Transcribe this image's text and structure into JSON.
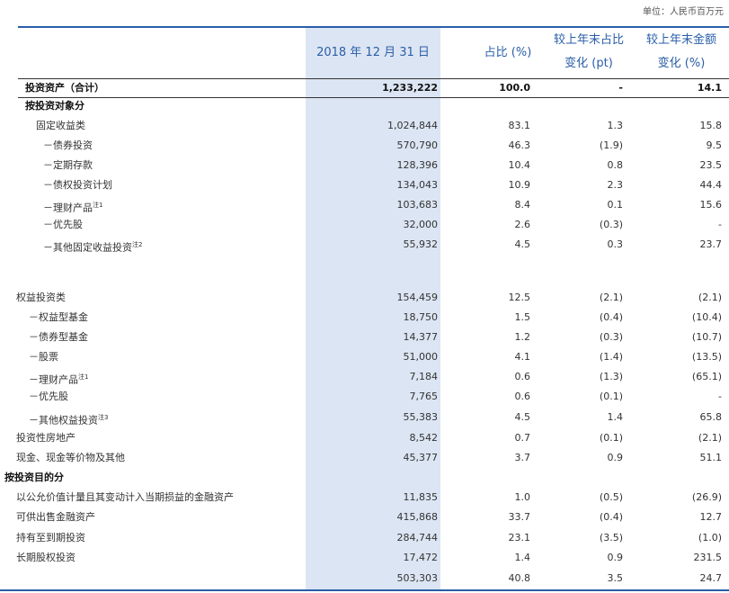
{
  "unit": "单位：人民币百万元",
  "table": {
    "header": [
      [
        "2018 年 12 月 31 日"
      ],
      [
        "占比 (%)"
      ],
      [
        "较上年末占比",
        "变化 (pt)"
      ],
      [
        "较上年末金额",
        "变化 (%)"
      ]
    ],
    "rows": [
      {
        "label": "投资资产（合计）",
        "cells": [
          "1,233,222",
          "100.0",
          "-",
          "14.1"
        ]
      },
      {
        "label": "按投资对象分"
      },
      {
        "label": "固定收益类",
        "cells": [
          "1,024,844",
          "83.1",
          "1.3",
          "15.8"
        ]
      },
      {
        "label": "－债券投资",
        "cells": [
          "570,790",
          "46.3",
          "(1.9)",
          "9.5"
        ]
      },
      {
        "label": "－定期存款",
        "cells": [
          "128,396",
          "10.4",
          "0.8",
          "23.5"
        ]
      },
      {
        "label": "－债权投资计划",
        "cells": [
          "134,043",
          "10.9",
          "2.3",
          "44.4"
        ]
      },
      {
        "label": "－理财产品",
        "note": "注1",
        "cells": [
          "103,683",
          "8.4",
          "0.1",
          "15.6"
        ]
      },
      {
        "label": "－优先股",
        "cells": [
          "32,000",
          "2.6",
          "(0.3)",
          "-"
        ]
      },
      {
        "label": "－其他固定收益投资",
        "note": "注2",
        "cells": [
          "55,932",
          "4.5",
          "0.3",
          "23.7"
        ]
      },
      {
        "label": "权益投资类",
        "cells": [
          "154,459",
          "12.5",
          "(2.1)",
          "(2.1)"
        ]
      },
      {
        "label": "－权益型基金",
        "cells": [
          "18,750",
          "1.5",
          "(0.4)",
          "(10.4)"
        ]
      },
      {
        "label": "－债券型基金",
        "cells": [
          "14,377",
          "1.2",
          "(0.3)",
          "(10.7)"
        ]
      },
      {
        "label": "－股票",
        "cells": [
          "51,000",
          "4.1",
          "(1.4)",
          "(13.5)"
        ]
      },
      {
        "label": "－理财产品",
        "note": "注1",
        "cells": [
          "7,184",
          "0.6",
          "(1.3)",
          "(65.1)"
        ]
      },
      {
        "label": "－优先股",
        "cells": [
          "7,765",
          "0.6",
          "(0.1)",
          "-"
        ]
      },
      {
        "label": "－其他权益投资",
        "note": "注3",
        "cells": [
          "55,383",
          "4.5",
          "1.4",
          "65.8"
        ]
      },
      {
        "label": "投资性房地产",
        "cells": [
          "8,542",
          "0.7",
          "(0.1)",
          "(2.1)"
        ]
      },
      {
        "label": "现金、现金等价物及其他",
        "cells": [
          "45,377",
          "3.7",
          "0.9",
          "51.1"
        ]
      },
      {
        "label": "按投资目的分"
      },
      {
        "label": "以公允价值计量且其变动计入当期损益的金融资产",
        "cells": [
          "11,835",
          "1.0",
          "(0.5)",
          "(26.9)"
        ]
      },
      {
        "label": "可供出售金融资产",
        "cells": [
          "415,868",
          "33.7",
          "(0.4)",
          "12.7"
        ]
      },
      {
        "label": "持有至到期投资",
        "cells": [
          "284,744",
          "23.1",
          "(3.5)",
          "(1.0)"
        ]
      },
      {
        "label": "长期股权投资",
        "cells": [
          "17,472",
          "1.4",
          "0.9",
          "231.5"
        ]
      },
      {
        "label": null,
        "cells": [
          "503,303",
          "40.8",
          "3.5",
          "24.7"
        ]
      }
    ]
  }
}
